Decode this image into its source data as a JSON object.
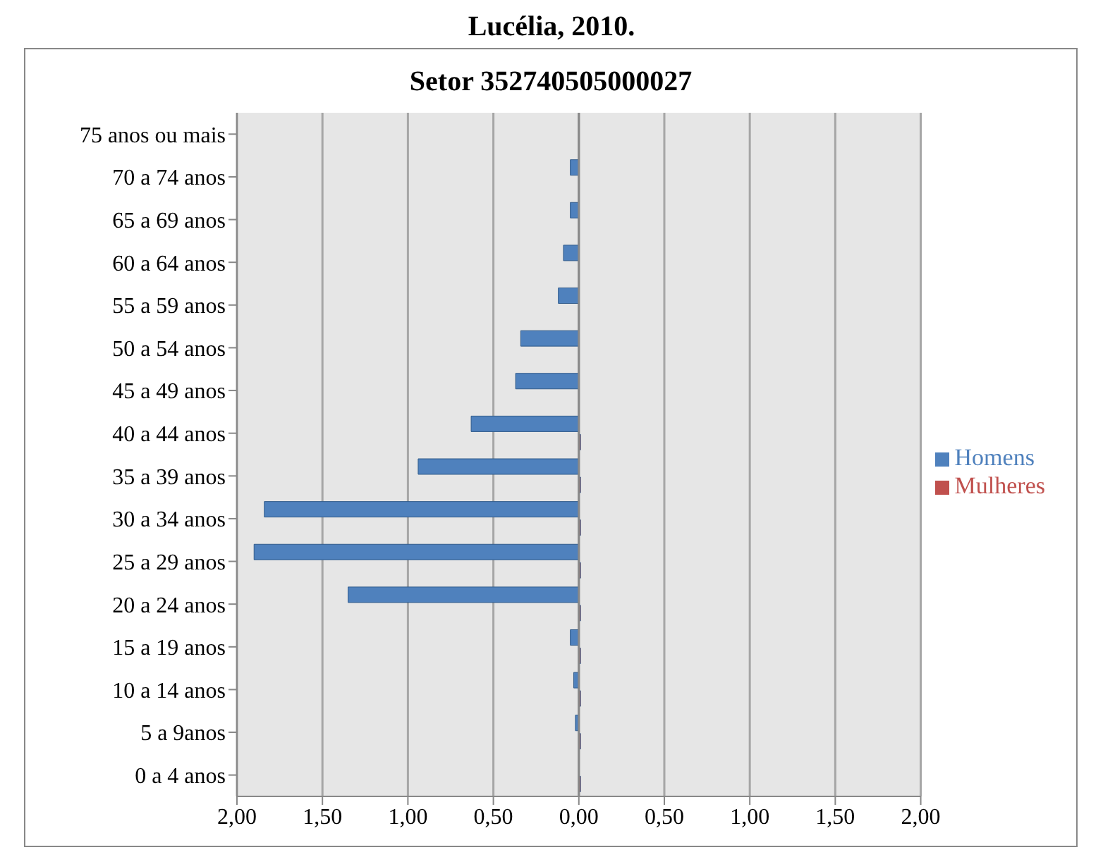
{
  "chart_data": {
    "type": "bar",
    "orientation": "horizontal",
    "title": "Lucélia, 2010.",
    "subtitle": "Setor  352740505000027",
    "categories": [
      "75 anos ou mais",
      "70 a 74 anos",
      "65 a 69 anos",
      "60 a 64 anos",
      "55 a 59 anos",
      "50 a 54 anos",
      "45 a 49 anos",
      "40 a 44 anos",
      "35 a 39 anos",
      "30 a 34 anos",
      "25 a 29 anos",
      "20 a 24 anos",
      "15 a 19 anos",
      "10 a 14 anos",
      "5 a 9anos",
      "0 a 4 anos"
    ],
    "series": [
      {
        "name": "Homens",
        "color": "#4f81bd",
        "values": [
          0,
          -0.05,
          -0.05,
          -0.09,
          -0.12,
          -0.34,
          -0.37,
          -0.63,
          -0.94,
          -1.84,
          -1.9,
          -1.35,
          -0.05,
          -0.03,
          -0.02,
          0
        ]
      },
      {
        "name": "Mulheres",
        "color": "#c0504d",
        "values": [
          0,
          0,
          0,
          0,
          0,
          0,
          0,
          0.01,
          0.01,
          0.01,
          0.01,
          0.01,
          0.01,
          0.01,
          0.01,
          0.01
        ]
      }
    ],
    "xlim": [
      -2,
      2
    ],
    "xticks": [
      {
        "value": -2,
        "label": "2,00"
      },
      {
        "value": -1.5,
        "label": "1,50"
      },
      {
        "value": -1,
        "label": "1,00"
      },
      {
        "value": -0.5,
        "label": "0,50"
      },
      {
        "value": 0,
        "label": "0,00"
      },
      {
        "value": 0.5,
        "label": "0,50"
      },
      {
        "value": 1,
        "label": "1,00"
      },
      {
        "value": 1.5,
        "label": "1,50"
      },
      {
        "value": 2,
        "label": "2,00"
      }
    ],
    "grid": "x",
    "legend": "right"
  }
}
